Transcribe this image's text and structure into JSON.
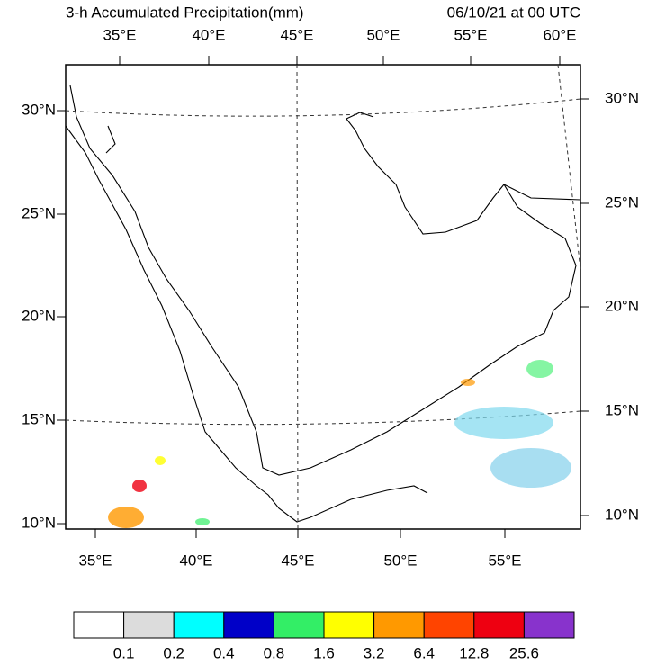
{
  "title": "3-h Accumulated Precipitation(mm)",
  "date": "06/10/21 at 00 UTC",
  "top_lon_labels": [
    "35°E",
    "40°E",
    "45°E",
    "50°E",
    "55°E",
    "60°E"
  ],
  "bottom_lon_labels": [
    "35°E",
    "40°E",
    "45°E",
    "50°E",
    "55°E"
  ],
  "left_lat_labels": [
    "30°N",
    "25°N",
    "20°N",
    "15°N",
    "10°N"
  ],
  "right_lat_labels": [
    "30°N",
    "25°N",
    "20°N",
    "15°N",
    "10°N"
  ],
  "colorbar": {
    "colors": [
      "#ffffff",
      "#dcdcdc",
      "#00ffff",
      "#0000c8",
      "#33ee66",
      "#ffff00",
      "#ff9900",
      "#ff4400",
      "#ee0011",
      "#8833cc"
    ],
    "labels": [
      "0.1",
      "0.2",
      "0.4",
      "0.8",
      "1.6",
      "3.2",
      "6.4",
      "12.8",
      "25.6"
    ]
  }
}
